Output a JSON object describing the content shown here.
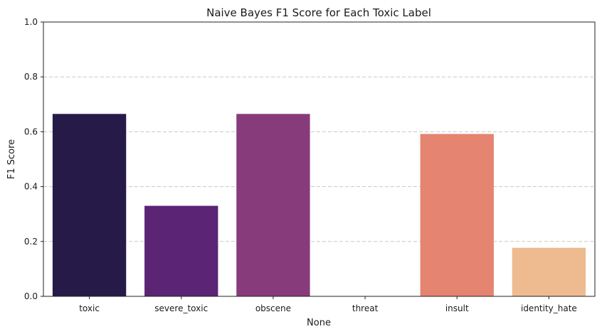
{
  "chart_data": {
    "type": "bar",
    "title": "Naive Bayes F1 Score for Each Toxic Label",
    "xlabel": "None",
    "ylabel": "F1 Score",
    "categories": [
      "toxic",
      "severe_toxic",
      "obscene",
      "threat",
      "insult",
      "identity_hate"
    ],
    "values": [
      0.665,
      0.33,
      0.665,
      0.0,
      0.592,
      0.177
    ],
    "colors": [
      "#251A48",
      "#5B2474",
      "#883B7A",
      "#C0436F",
      "#E58470",
      "#EEBB90"
    ],
    "ylim": [
      0,
      1
    ],
    "yticks": [
      0.0,
      0.2,
      0.4,
      0.6,
      0.8,
      1.0
    ],
    "ytick_labels": [
      "0.0",
      "0.2",
      "0.4",
      "0.6",
      "0.8",
      "1.0"
    ],
    "grid": "y-dashed",
    "legend": "none"
  }
}
